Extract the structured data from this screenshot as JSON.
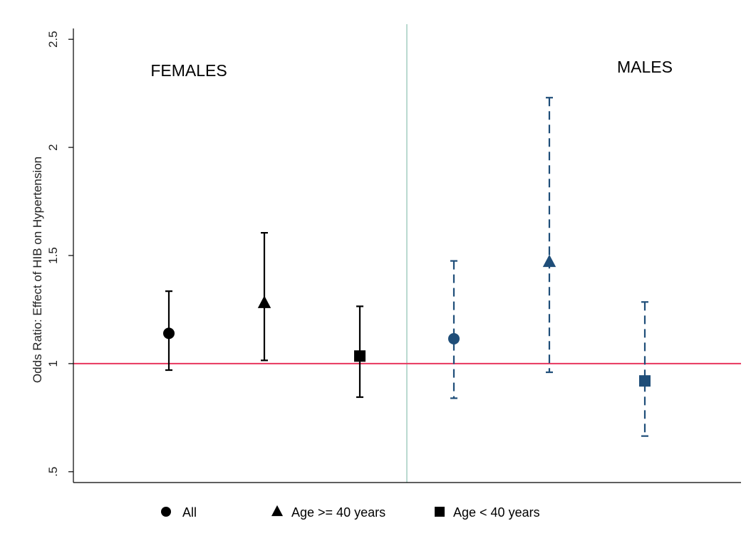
{
  "chart_data": {
    "type": "errorbar",
    "title": "",
    "ylabel": "Odds Ratio: Effect of HIB on Hypertension",
    "ylim": [
      0.45,
      2.55
    ],
    "yticks": [
      0.5,
      1,
      1.5,
      2,
      2.5
    ],
    "ytick_labels": [
      ".5",
      "1",
      "1.5",
      "2",
      "2.5"
    ],
    "reference_line": {
      "y": 1,
      "color": "#e8365d"
    },
    "grid": false,
    "legend_position": "bottom",
    "groups": [
      {
        "label": "FEMALES",
        "color": "#000000",
        "whisker_style": "solid",
        "points": [
          {
            "series": "All",
            "marker": "circle",
            "estimate": 1.14,
            "lower": 0.97,
            "upper": 1.335
          },
          {
            "series": "Age >= 40 years",
            "marker": "triangle",
            "estimate": 1.28,
            "lower": 1.015,
            "upper": 1.605
          },
          {
            "series": "Age < 40 years",
            "marker": "square",
            "estimate": 1.035,
            "lower": 0.845,
            "upper": 1.265
          }
        ]
      },
      {
        "label": "MALES",
        "color": "#1f4e79",
        "whisker_style": "dashed",
        "points": [
          {
            "series": "All",
            "marker": "circle",
            "estimate": 1.115,
            "lower": 0.84,
            "upper": 1.475
          },
          {
            "series": "Age >= 40 years",
            "marker": "triangle",
            "estimate": 1.47,
            "lower": 0.96,
            "upper": 2.23
          },
          {
            "series": "Age < 40 years",
            "marker": "square",
            "estimate": 0.92,
            "lower": 0.665,
            "upper": 1.285
          }
        ]
      }
    ],
    "legend": [
      {
        "label": "All",
        "marker": "circle"
      },
      {
        "label": "Age >= 40 years",
        "marker": "triangle"
      },
      {
        "label": "Age < 40 years",
        "marker": "square"
      }
    ],
    "divider_color": "#a9d1c4",
    "axis_color": "#000000"
  }
}
